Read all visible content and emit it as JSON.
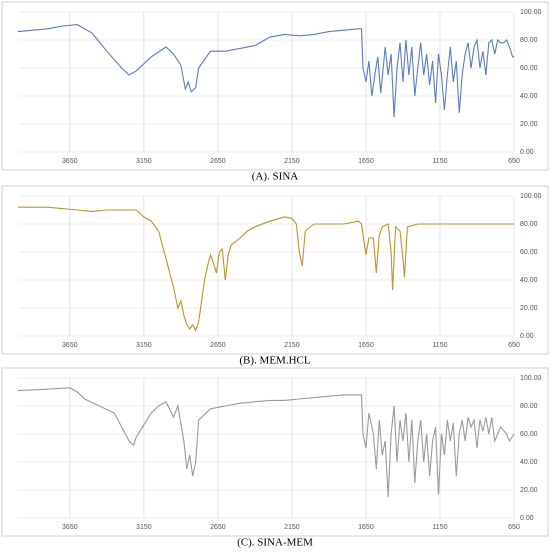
{
  "chart_data": [
    {
      "type": "line",
      "title": "(A). SINA",
      "x": [
        4000,
        3800,
        3700,
        3600,
        3500,
        3400,
        3300,
        3250,
        3200,
        3100,
        3000,
        2950,
        2900,
        2870,
        2850,
        2830,
        2800,
        2780,
        2700,
        2600,
        2500,
        2400,
        2300,
        2200,
        2100,
        2000,
        1900,
        1800,
        1700,
        1680,
        1670,
        1650,
        1630,
        1610,
        1590,
        1570,
        1550,
        1520,
        1500,
        1480,
        1460,
        1440,
        1420,
        1400,
        1380,
        1360,
        1340,
        1320,
        1300,
        1280,
        1260,
        1240,
        1220,
        1200,
        1180,
        1160,
        1140,
        1120,
        1100,
        1080,
        1060,
        1040,
        1020,
        1000,
        980,
        960,
        940,
        920,
        900,
        880,
        860,
        840,
        820,
        800,
        780,
        760,
        740,
        720,
        700,
        680,
        660,
        650
      ],
      "series": [
        {
          "color": "#5b7bc4",
          "values": [
            86,
            88,
            90,
            91,
            85,
            72,
            60,
            55,
            58,
            68,
            75,
            70,
            62,
            45,
            50,
            43,
            46,
            60,
            72,
            72,
            74,
            76,
            82,
            84,
            83,
            84,
            86,
            87,
            88,
            88,
            60,
            50,
            65,
            40,
            55,
            68,
            42,
            75,
            55,
            70,
            25,
            60,
            78,
            50,
            80,
            55,
            75,
            40,
            60,
            78,
            55,
            70,
            48,
            65,
            35,
            70,
            55,
            30,
            55,
            75,
            50,
            65,
            28,
            55,
            70,
            78,
            60,
            75,
            80,
            60,
            72,
            55,
            78,
            80,
            70,
            80,
            78,
            78,
            80,
            75,
            68,
            68
          ]
        }
      ],
      "xlim": [
        4000,
        650
      ],
      "ylim": [
        0,
        100
      ],
      "xticks": [
        3650,
        3150,
        2650,
        2150,
        1650,
        1150,
        650
      ],
      "yticks": [
        {
          "value": 0,
          "label": "0.00"
        },
        {
          "value": 20,
          "label": "20.00"
        },
        {
          "value": 40,
          "label": "40.00"
        },
        {
          "value": 60,
          "label": "60.00"
        },
        {
          "value": 80,
          "label": "80.00"
        },
        {
          "value": 100,
          "label": "100.00"
        }
      ],
      "grid": true
    },
    {
      "type": "line",
      "title": "(B). MEM.HCL",
      "x": [
        4000,
        3800,
        3600,
        3500,
        3400,
        3200,
        3150,
        3100,
        3050,
        3000,
        2950,
        2920,
        2900,
        2880,
        2860,
        2840,
        2820,
        2800,
        2780,
        2760,
        2740,
        2720,
        2700,
        2680,
        2660,
        2640,
        2620,
        2600,
        2580,
        2560,
        2500,
        2450,
        2400,
        2300,
        2200,
        2150,
        2120,
        2100,
        2080,
        2060,
        2000,
        1900,
        1800,
        1700,
        1680,
        1650,
        1630,
        1600,
        1580,
        1560,
        1540,
        1500,
        1480,
        1470,
        1450,
        1420,
        1400,
        1390,
        1370,
        1300,
        1200,
        1100,
        1000,
        900,
        800,
        700,
        650
      ],
      "series": [
        {
          "color": "#b8962e",
          "values": [
            92,
            92,
            90,
            89,
            90,
            90,
            85,
            82,
            75,
            55,
            35,
            20,
            25,
            15,
            8,
            5,
            8,
            4,
            10,
            25,
            40,
            50,
            58,
            52,
            45,
            60,
            62,
            40,
            58,
            65,
            70,
            75,
            78,
            82,
            85,
            84,
            80,
            60,
            50,
            75,
            80,
            80,
            80,
            82,
            80,
            58,
            70,
            70,
            45,
            72,
            78,
            80,
            60,
            33,
            78,
            75,
            55,
            42,
            78,
            80,
            80,
            80,
            80,
            80,
            80,
            80,
            80
          ]
        }
      ],
      "xlim": [
        4000,
        650
      ],
      "ylim": [
        0,
        100
      ],
      "xticks": [
        3650,
        3150,
        2650,
        2150,
        1650,
        1150,
        650
      ],
      "yticks": [
        {
          "value": 0,
          "label": "0.00"
        },
        {
          "value": 20,
          "label": "20.00"
        },
        {
          "value": 40,
          "label": "40.00"
        },
        {
          "value": 60,
          "label": "60.00"
        },
        {
          "value": 80,
          "label": "80.00"
        },
        {
          "value": 100,
          "label": "100.00"
        }
      ],
      "grid": true
    },
    {
      "type": "line",
      "title": "(C). SINA-MEM",
      "x": [
        4000,
        3800,
        3650,
        3600,
        3550,
        3450,
        3350,
        3300,
        3250,
        3220,
        3200,
        3100,
        3050,
        3000,
        2950,
        2920,
        2880,
        2860,
        2840,
        2820,
        2800,
        2780,
        2700,
        2600,
        2500,
        2400,
        2300,
        2200,
        2100,
        2000,
        1900,
        1800,
        1700,
        1680,
        1670,
        1650,
        1630,
        1600,
        1580,
        1560,
        1540,
        1520,
        1500,
        1480,
        1460,
        1440,
        1420,
        1400,
        1380,
        1360,
        1340,
        1320,
        1300,
        1280,
        1260,
        1240,
        1220,
        1200,
        1180,
        1160,
        1140,
        1120,
        1100,
        1080,
        1060,
        1040,
        1020,
        1000,
        980,
        960,
        940,
        920,
        900,
        880,
        860,
        840,
        820,
        800,
        780,
        760,
        740,
        700,
        680,
        650
      ],
      "series": [
        {
          "color": "#9a9a9a",
          "values": [
            91,
            92,
            93,
            90,
            85,
            80,
            75,
            65,
            55,
            52,
            58,
            75,
            80,
            83,
            72,
            80,
            55,
            35,
            45,
            30,
            40,
            70,
            78,
            80,
            82,
            83,
            84,
            84,
            85,
            86,
            87,
            88,
            88,
            88,
            60,
            50,
            75,
            60,
            35,
            70,
            45,
            55,
            15,
            60,
            80,
            40,
            70,
            55,
            75,
            40,
            70,
            25,
            55,
            70,
            40,
            60,
            30,
            55,
            65,
            17,
            60,
            45,
            70,
            55,
            68,
            30,
            60,
            70,
            55,
            72,
            65,
            70,
            50,
            70,
            62,
            72,
            60,
            72,
            55,
            60,
            65,
            60,
            55,
            60
          ]
        }
      ],
      "xlim": [
        4000,
        650
      ],
      "ylim": [
        0,
        100
      ],
      "xticks": [
        3650,
        3150,
        2650,
        2150,
        1650,
        1150,
        650
      ],
      "yticks": [
        {
          "value": 0,
          "label": "0.00"
        },
        {
          "value": 20,
          "label": "20.00"
        },
        {
          "value": 40,
          "label": "40.00"
        },
        {
          "value": 60,
          "label": "60.00"
        },
        {
          "value": 80,
          "label": "80.00"
        },
        {
          "value": 100,
          "label": "100.00"
        }
      ],
      "grid": true
    }
  ]
}
